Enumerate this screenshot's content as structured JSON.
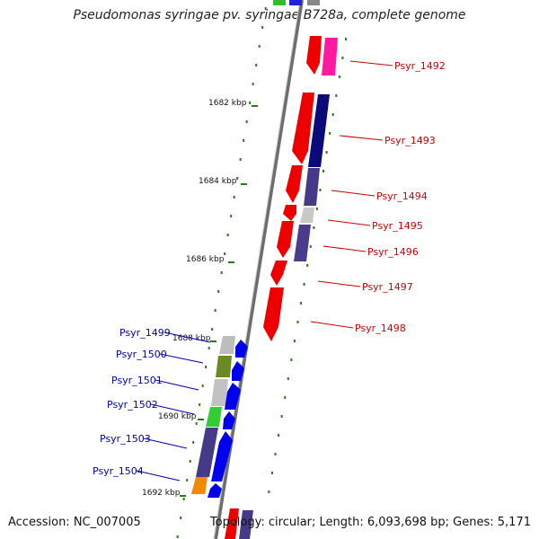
{
  "title": "Pseudomonas syringae pv. syringae B728a, complete genome",
  "accession_text": "Accession: NC_007005",
  "summary_text": "Topology: circular; Length: 6,093,698 bp; Genes: 5,171",
  "colors": {
    "backbone": "#8a8a8a",
    "scale_ticks": "#2a7a1a",
    "forward_label": "#cc0000",
    "reverse_label": "#0000bb",
    "kbp_label": "#111111"
  },
  "scale_labels": [
    {
      "text": "1682 kbp"
    },
    {
      "text": "1684 kbp"
    },
    {
      "text": "1686 kbp"
    },
    {
      "text": "1688 kbp"
    },
    {
      "text": "1690 kbp"
    },
    {
      "text": "1692 kbp"
    }
  ],
  "gene_labels_right": [
    {
      "text": "Psyr_1492"
    },
    {
      "text": "Psyr_1493"
    },
    {
      "text": "Psyr_1494"
    },
    {
      "text": "Psyr_1495"
    },
    {
      "text": "Psyr_1496"
    },
    {
      "text": "Psyr_1497"
    },
    {
      "text": "Psyr_1498"
    }
  ],
  "gene_labels_left": [
    {
      "text": "Psyr_1499"
    },
    {
      "text": "Psyr_1500"
    },
    {
      "text": "Psyr_1501"
    },
    {
      "text": "Psyr_1502"
    },
    {
      "text": "Psyr_1503"
    },
    {
      "text": "Psyr_1504"
    }
  ]
}
